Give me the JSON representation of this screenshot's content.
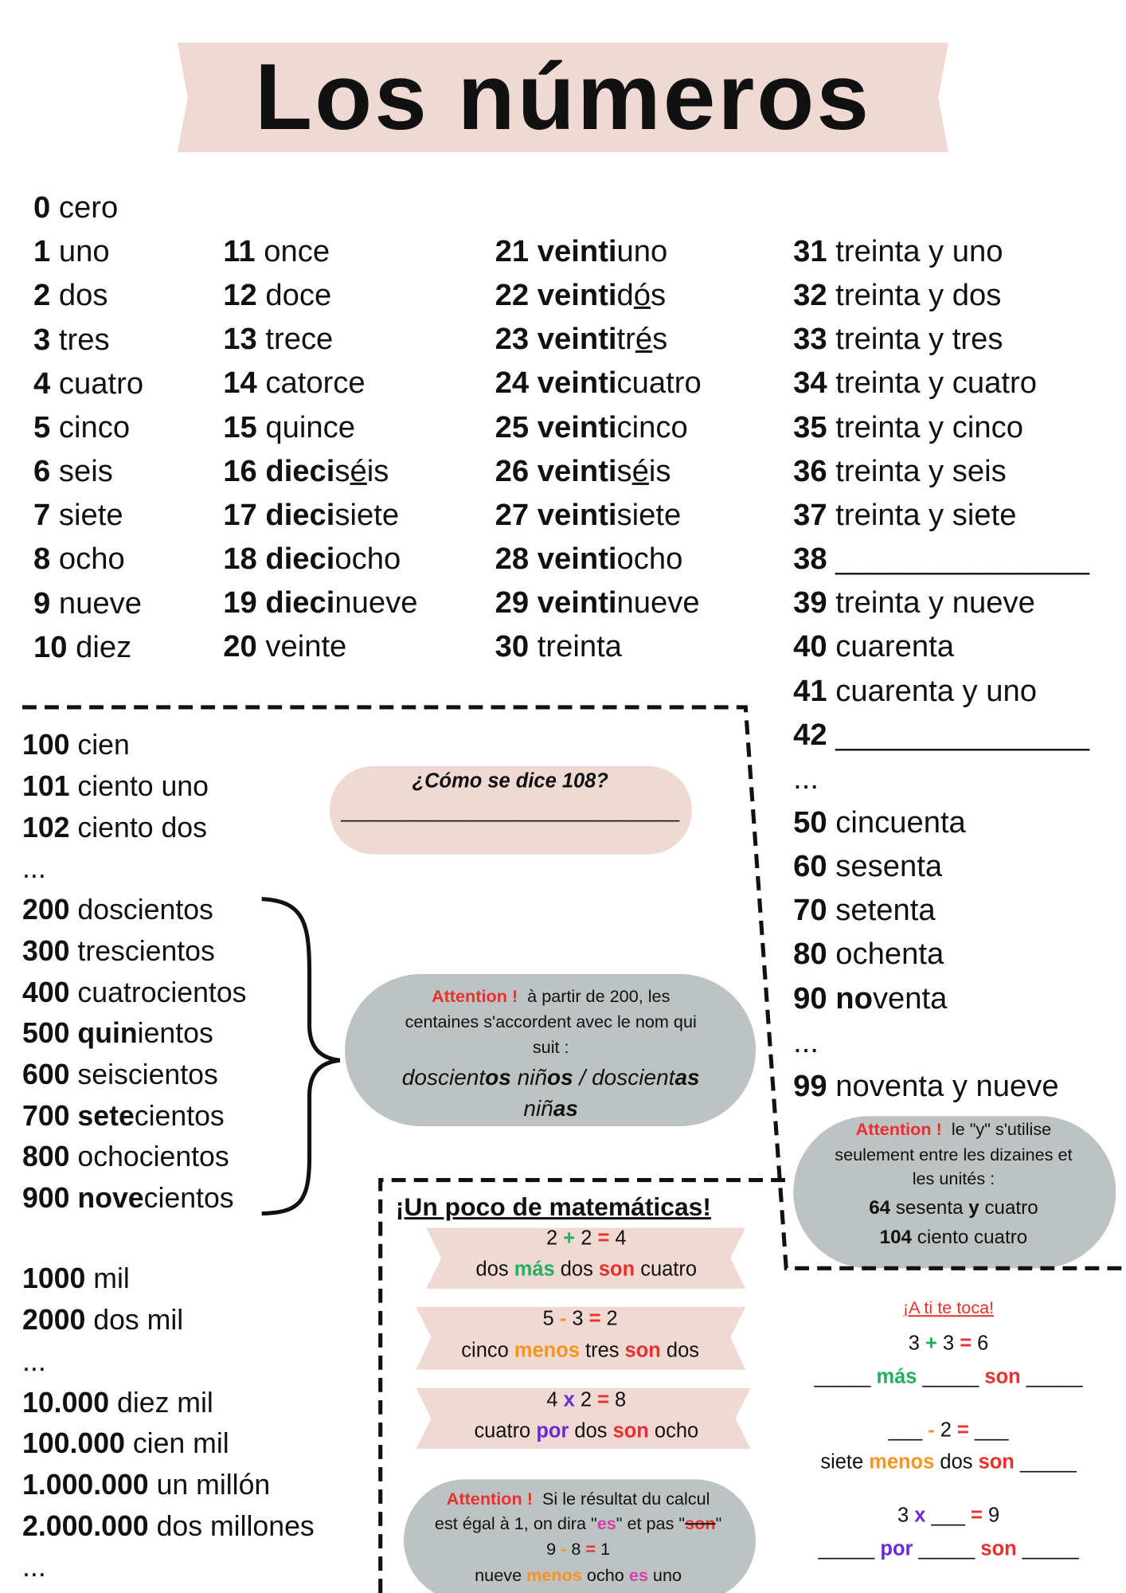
{
  "title": "Los números",
  "groups": {
    "col1": [
      [
        {
          "bold": "0"
        },
        " cero"
      ],
      [
        {
          "bold": "1"
        },
        " uno"
      ],
      [
        {
          "bold": "2"
        },
        " dos"
      ],
      [
        {
          "bold": "3"
        },
        " tres"
      ],
      [
        {
          "bold": "4"
        },
        " cuatro"
      ],
      [
        {
          "bold": "5"
        },
        " cinco"
      ],
      [
        {
          "bold": "6"
        },
        " seis"
      ],
      [
        {
          "bold": "7"
        },
        " siete"
      ],
      [
        {
          "bold": "8"
        },
        " ocho"
      ],
      [
        {
          "bold": "9"
        },
        " nueve"
      ],
      [
        {
          "bold": "10"
        },
        " diez"
      ]
    ],
    "col2": [
      [
        {
          "bold": "11"
        },
        " once"
      ],
      [
        {
          "bold": "12"
        },
        " doce"
      ],
      [
        {
          "bold": "13"
        },
        " trece"
      ],
      [
        {
          "bold": "14"
        },
        " catorce"
      ],
      [
        {
          "bold": "15"
        },
        " quince"
      ],
      [
        {
          "bold": "16 dieci"
        },
        "s",
        {
          "underline": "é"
        },
        "is"
      ],
      [
        {
          "bold": "17 dieci"
        },
        "siete"
      ],
      [
        {
          "bold": "18 dieci"
        },
        "ocho"
      ],
      [
        {
          "bold": "19 dieci"
        },
        "nueve"
      ],
      [
        {
          "bold": "20"
        },
        " veinte"
      ]
    ],
    "col3": [
      [
        {
          "bold": "21 veinti"
        },
        "uno"
      ],
      [
        {
          "bold": "22 veinti"
        },
        "d",
        {
          "underline": "ó"
        },
        "s"
      ],
      [
        {
          "bold": "23 veinti"
        },
        "tr",
        {
          "underline": "é"
        },
        "s"
      ],
      [
        {
          "bold": "24 veinti"
        },
        "cuatro"
      ],
      [
        {
          "bold": "25 veinti"
        },
        "cinco"
      ],
      [
        {
          "bold": "26 veinti"
        },
        "s",
        {
          "underline": "é"
        },
        "is"
      ],
      [
        {
          "bold": "27 veinti"
        },
        "siete"
      ],
      [
        {
          "bold": "28 veinti"
        },
        "ocho"
      ],
      [
        {
          "bold": "29 veinti"
        },
        "nueve"
      ],
      [
        {
          "bold": "30"
        },
        " treinta"
      ]
    ],
    "col4": [
      [
        {
          "bold": "31"
        },
        " treinta y uno"
      ],
      [
        {
          "bold": "32"
        },
        " treinta y dos"
      ],
      [
        {
          "bold": "33"
        },
        " treinta y tres"
      ],
      [
        {
          "bold": "34"
        },
        " treinta y cuatro"
      ],
      [
        {
          "bold": "35"
        },
        " treinta y cinco"
      ],
      [
        {
          "bold": "36"
        },
        " treinta y seis"
      ],
      [
        {
          "bold": "37"
        },
        " treinta y siete"
      ],
      [
        {
          "bold": "38"
        },
        " _______________"
      ],
      [
        {
          "bold": "39"
        },
        " treinta y nueve"
      ],
      [
        {
          "bold": "40"
        },
        " cuarenta"
      ],
      [
        {
          "bold": "41"
        },
        " cuarenta y uno"
      ],
      [
        {
          "bold": "42"
        },
        " _______________"
      ],
      [
        "..."
      ],
      [
        {
          "bold": "50"
        },
        " cincuenta"
      ],
      [
        {
          "bold": "60"
        },
        " sesenta"
      ],
      [
        {
          "bold": "70"
        },
        " setenta"
      ],
      [
        {
          "bold": "80"
        },
        " ochenta"
      ],
      [
        {
          "bold": "90 no"
        },
        "venta"
      ],
      [
        "..."
      ],
      [
        {
          "bold": "99"
        },
        " noventa y nueve"
      ]
    ],
    "hundreds": [
      [
        {
          "bold": "100"
        },
        " cien"
      ],
      [
        {
          "bold": "101"
        },
        " ciento uno"
      ],
      [
        {
          "bold": "102"
        },
        " ciento dos"
      ],
      [
        "..."
      ],
      [
        {
          "bold": "200"
        },
        " doscientos"
      ],
      [
        {
          "bold": "300"
        },
        " trescientos"
      ],
      [
        {
          "bold": "400"
        },
        " cuatrocientos"
      ],
      [
        {
          "bold": "500 quin"
        },
        "ientos"
      ],
      [
        {
          "bold": "600"
        },
        " seiscientos"
      ],
      [
        {
          "bold": "700 sete"
        },
        "cientos"
      ],
      [
        {
          "bold": "800"
        },
        " ochocientos"
      ],
      [
        {
          "bold": "900 nove"
        },
        "cientos"
      ]
    ],
    "thousands": [
      [
        {
          "bold": "1000"
        },
        " mil"
      ],
      [
        {
          "bold": "2000"
        },
        " dos mil"
      ],
      [
        "..."
      ],
      [
        {
          "bold": "10.000"
        },
        " diez mil"
      ],
      [
        {
          "bold": "100.000"
        },
        " cien mil"
      ],
      [
        {
          "bold": "1.000.000"
        },
        " un millón"
      ],
      [
        {
          "bold": "2.000.000"
        },
        " dos millones"
      ],
      [
        "..."
      ]
    ],
    "question": [
      [
        {
          "bolditalic": "¿Cómo se dice 108?"
        }
      ],
      [
        "______________________________"
      ]
    ],
    "note_centenas": [
      [
        {
          "alert": "Attention !"
        },
        "  à partir de 200, les"
      ],
      [
        "centaines s'accordent avec le nom qui"
      ],
      [
        "suit :"
      ],
      [
        {
          "italic": "doscient"
        },
        {
          "bolditalic": "os"
        },
        {
          "italic": " niñ"
        },
        {
          "bolditalic": "os"
        },
        {
          "italic": " / doscient"
        },
        {
          "bolditalic": "as"
        }
      ],
      [
        {
          "italic": "niñ"
        },
        {
          "bolditalic": "as"
        }
      ]
    ],
    "note_y": [
      [
        {
          "alert": "Attention !"
        },
        "  le \"y\" s'utilise"
      ],
      [
        "seulement entre les dizaines et"
      ],
      [
        "les unités :"
      ],
      [
        {
          "bold": "64"
        },
        " sesenta ",
        {
          "bold": "y"
        },
        " cuatro"
      ],
      [
        {
          "bold": "104"
        },
        " ciento cuatro"
      ]
    ],
    "math_title": [
      [
        {
          "boldunder": "¡Un poco de matemáticas!"
        }
      ]
    ],
    "math_1": [
      [
        "2 ",
        {
          "green": "+"
        },
        " 2 ",
        {
          "red": "="
        },
        " 4"
      ],
      [
        "dos ",
        {
          "green": "más"
        },
        " dos ",
        {
          "red": "son"
        },
        " cuatro"
      ]
    ],
    "math_2": [
      [
        "5 ",
        {
          "orange": "-"
        },
        " 3 ",
        {
          "red": "="
        },
        " 2"
      ],
      [
        "cinco ",
        {
          "orange": "menos"
        },
        " tres ",
        {
          "red": "son"
        },
        " dos"
      ]
    ],
    "math_3": [
      [
        "4 ",
        {
          "purple": "x"
        },
        " 2 ",
        {
          "red": "="
        },
        " 8"
      ],
      [
        "cuatro ",
        {
          "purple": "por"
        },
        " dos ",
        {
          "red": "son"
        },
        " ocho"
      ]
    ],
    "note_es": [
      [
        {
          "alert": "Attention !"
        },
        "  Si le résultat du calcul"
      ],
      [
        "est égal à 1, on dira \"",
        {
          "pink": "es"
        },
        "\" et pas \"",
        {
          "struck": "son"
        },
        "\""
      ],
      [
        "9 ",
        {
          "orange": "-"
        },
        " 8 ",
        {
          "red": "="
        },
        " 1"
      ],
      [
        "nueve ",
        {
          "orange": "menos"
        },
        " ocho ",
        {
          "pink": "es"
        },
        " uno"
      ]
    ],
    "practice": [
      [
        {
          "redunder": "¡A ti te toca!"
        }
      ],
      [
        "3 ",
        {
          "green": "+"
        },
        " 3 ",
        {
          "red": "="
        },
        " 6"
      ],
      [
        "_____ ",
        {
          "green": "más"
        },
        " _____ ",
        {
          "red": "son"
        },
        " _____"
      ],
      [
        "___ ",
        {
          "orange": "-"
        },
        " 2 ",
        {
          "red": "="
        },
        " ___"
      ],
      [
        "siete ",
        {
          "orange": "menos"
        },
        " dos ",
        {
          "red": "son"
        },
        " _____"
      ],
      [
        "3 ",
        {
          "purple": "x"
        },
        " ___ ",
        {
          "red": "="
        },
        " 9"
      ],
      [
        "_____ ",
        {
          "purple": "por"
        },
        " _____ ",
        {
          "red": "son"
        },
        " _____"
      ]
    ]
  }
}
